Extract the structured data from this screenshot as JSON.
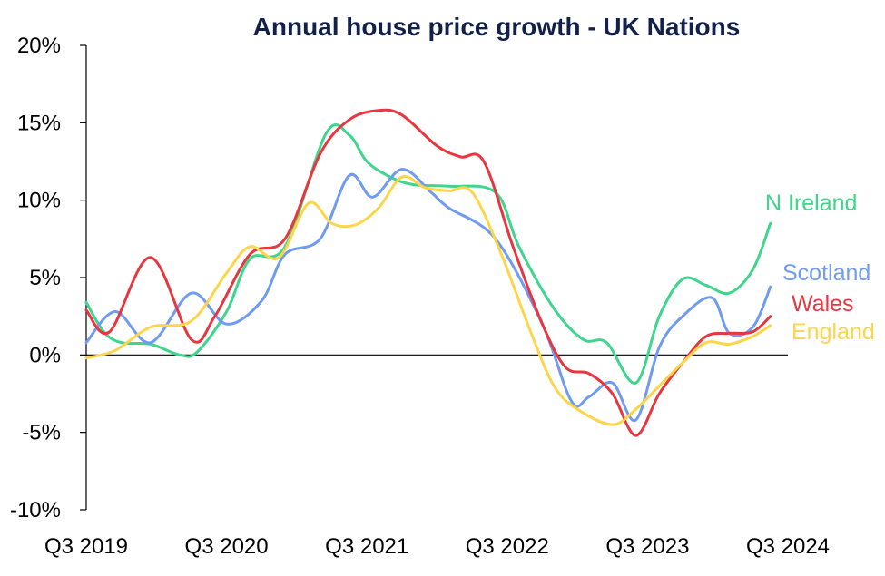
{
  "chart_data": {
    "type": "line",
    "title": "Annual house price growth - UK Nations",
    "xlabel": "",
    "ylabel": "",
    "ylim": [
      -10,
      20
    ],
    "y_ticks": [
      "20%",
      "15%",
      "10%",
      "5%",
      "0%",
      "-5%",
      "-10%"
    ],
    "y_tick_values": [
      20,
      15,
      10,
      5,
      0,
      -5,
      -10
    ],
    "x_ticks": [
      "Q3 2019",
      "Q3 2020",
      "Q3 2021",
      "Q3 2022",
      "Q3 2023",
      "Q3 2024"
    ],
    "x_tick_months": [
      0,
      12,
      24,
      36,
      48,
      60
    ],
    "x_range_months": [
      0,
      60
    ],
    "grid": false,
    "legend": "direct labels at line ends",
    "series": [
      {
        "name": "N Ireland",
        "color": "#3dd68c",
        "points": [
          [
            0,
            3.4
          ],
          [
            1.5,
            1.5
          ],
          [
            3,
            0.8
          ],
          [
            5.5,
            0.7
          ],
          [
            8,
            0
          ],
          [
            9.5,
            0.2
          ],
          [
            12,
            2.8
          ],
          [
            14,
            6.2
          ],
          [
            17,
            7
          ],
          [
            20.5,
            14.3
          ],
          [
            22.5,
            14.2
          ],
          [
            24,
            12.5
          ],
          [
            26,
            11.5
          ],
          [
            28,
            11
          ],
          [
            31,
            10.9
          ],
          [
            35,
            10.5
          ],
          [
            37,
            7
          ],
          [
            40,
            3
          ],
          [
            42.5,
            1
          ],
          [
            44.5,
            0.8
          ],
          [
            47,
            -1.8
          ],
          [
            49,
            2.5
          ],
          [
            51,
            4.9
          ],
          [
            53,
            4.5
          ],
          [
            55,
            4
          ],
          [
            57,
            5.5
          ],
          [
            58.5,
            8.5
          ]
        ]
      },
      {
        "name": "Scotland",
        "color": "#6f9bf2",
        "points": [
          [
            0,
            0.8
          ],
          [
            2.5,
            2.8
          ],
          [
            5.5,
            0.8
          ],
          [
            9,
            4
          ],
          [
            12,
            2
          ],
          [
            15,
            3.5
          ],
          [
            17,
            6.5
          ],
          [
            20,
            7.5
          ],
          [
            22.5,
            11.6
          ],
          [
            24.5,
            10.2
          ],
          [
            27,
            12
          ],
          [
            29.5,
            10.5
          ],
          [
            31,
            9.5
          ],
          [
            35,
            7.5
          ],
          [
            39,
            2
          ],
          [
            41.5,
            -3
          ],
          [
            43,
            -2.7
          ],
          [
            45,
            -1.8
          ],
          [
            47,
            -4.2
          ],
          [
            49,
            0.5
          ],
          [
            51,
            2.5
          ],
          [
            53.5,
            3.7
          ],
          [
            55,
            1.4
          ],
          [
            57,
            1.8
          ],
          [
            58.5,
            4.4
          ]
        ]
      },
      {
        "name": "Wales",
        "color": "#e83640",
        "points": [
          [
            0,
            2.9
          ],
          [
            2,
            1.5
          ],
          [
            5.5,
            6.3
          ],
          [
            9,
            1
          ],
          [
            11,
            2.5
          ],
          [
            14,
            6.5
          ],
          [
            17,
            7.5
          ],
          [
            20,
            13
          ],
          [
            22.5,
            15.2
          ],
          [
            25,
            15.8
          ],
          [
            27,
            15.5
          ],
          [
            30,
            13.5
          ],
          [
            32,
            12.8
          ],
          [
            34,
            12.5
          ],
          [
            36.5,
            7
          ],
          [
            39,
            2
          ],
          [
            41,
            -0.8
          ],
          [
            43,
            -1.2
          ],
          [
            45,
            -2.5
          ],
          [
            47,
            -5.2
          ],
          [
            49,
            -2.5
          ],
          [
            51,
            -0.5
          ],
          [
            53,
            1.2
          ],
          [
            55,
            1.4
          ],
          [
            57,
            1.5
          ],
          [
            58.5,
            2.5
          ]
        ]
      },
      {
        "name": "England",
        "color": "#fdd54a",
        "points": [
          [
            0,
            -0.2
          ],
          [
            2.5,
            0.3
          ],
          [
            5.5,
            1.8
          ],
          [
            9,
            2.2
          ],
          [
            12,
            5.3
          ],
          [
            14,
            7
          ],
          [
            16.5,
            6.3
          ],
          [
            19,
            9.8
          ],
          [
            21,
            8.5
          ],
          [
            23,
            8.4
          ],
          [
            25,
            9.5
          ],
          [
            27,
            11.5
          ],
          [
            29,
            10.8
          ],
          [
            31,
            10.6
          ],
          [
            33,
            10.5
          ],
          [
            35.5,
            6.5
          ],
          [
            38,
            1.5
          ],
          [
            40,
            -2
          ],
          [
            42,
            -3.5
          ],
          [
            45,
            -4.5
          ],
          [
            47,
            -3.5
          ],
          [
            49,
            -2
          ],
          [
            51,
            -0.5
          ],
          [
            53,
            0.8
          ],
          [
            55,
            0.7
          ],
          [
            57,
            1.2
          ],
          [
            58.5,
            1.9
          ]
        ]
      }
    ]
  }
}
